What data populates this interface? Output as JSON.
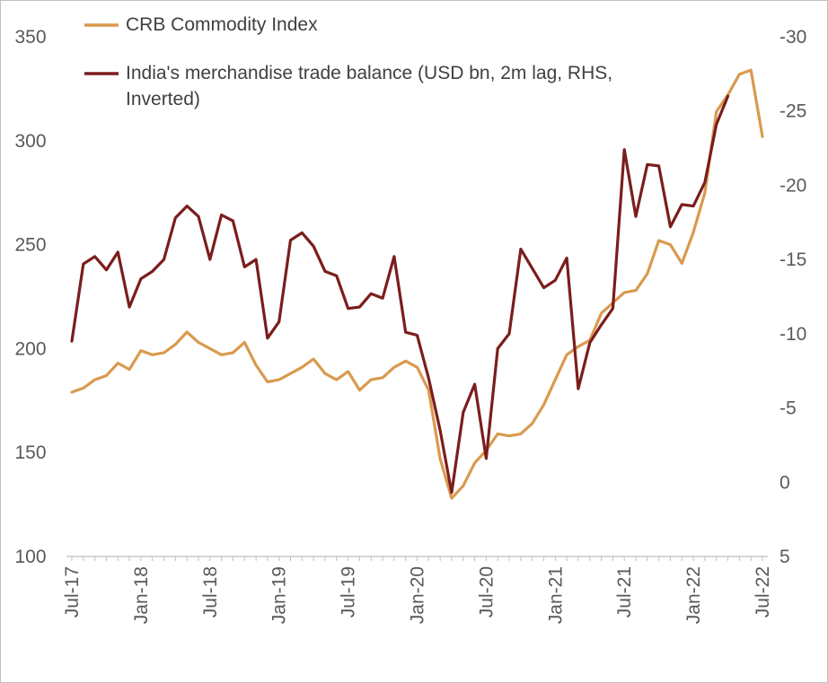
{
  "chart_data": {
    "type": "line",
    "legend_placement": "top-left",
    "grid": false,
    "x_tick_labels": [
      "Jul-17",
      "Jan-18",
      "Jul-18",
      "Jan-19",
      "Jul-19",
      "Jan-20",
      "Jul-20",
      "Jan-21",
      "Jul-21",
      "Jan-22",
      "Jul-22"
    ],
    "y_left": {
      "ylim": [
        100,
        350
      ],
      "ticks": [
        100,
        150,
        200,
        250,
        300,
        350
      ]
    },
    "y_right": {
      "ylim": [
        5,
        -30
      ],
      "inverted": true,
      "ticks": [
        5,
        0,
        -5,
        -10,
        -15,
        -20,
        -25,
        -30
      ]
    },
    "series": [
      {
        "name": "CRB Commodity Index",
        "axis": "left",
        "color": "#D99A4E",
        "x": [
          "2017-07",
          "2017-08",
          "2017-09",
          "2017-10",
          "2017-11",
          "2017-12",
          "2018-01",
          "2018-02",
          "2018-03",
          "2018-04",
          "2018-05",
          "2018-06",
          "2018-07",
          "2018-08",
          "2018-09",
          "2018-10",
          "2018-11",
          "2018-12",
          "2019-01",
          "2019-02",
          "2019-03",
          "2019-04",
          "2019-05",
          "2019-06",
          "2019-07",
          "2019-08",
          "2019-09",
          "2019-10",
          "2019-11",
          "2019-12",
          "2020-01",
          "2020-02",
          "2020-03",
          "2020-04",
          "2020-05",
          "2020-06",
          "2020-07",
          "2020-08",
          "2020-09",
          "2020-10",
          "2020-11",
          "2020-12",
          "2021-01",
          "2021-02",
          "2021-03",
          "2021-04",
          "2021-05",
          "2021-06",
          "2021-07",
          "2021-08",
          "2021-09",
          "2021-10",
          "2021-11",
          "2021-12",
          "2022-01",
          "2022-02",
          "2022-03",
          "2022-04",
          "2022-05",
          "2022-06",
          "2022-07"
        ],
        "values": [
          179,
          181,
          185,
          187,
          193,
          190,
          199,
          197,
          198,
          202,
          208,
          203,
          200,
          197,
          198,
          203,
          192,
          184,
          185,
          188,
          191,
          195,
          188,
          185,
          189,
          180,
          185,
          186,
          191,
          194,
          191,
          180,
          147,
          128,
          134,
          145,
          151,
          159,
          158,
          159,
          164,
          173,
          185,
          197,
          201,
          204,
          217,
          222,
          227,
          228,
          236,
          252,
          250,
          241,
          256,
          275,
          314,
          322,
          332,
          334,
          302
        ]
      },
      {
        "name": "India's merchandise trade balance (USD bn, 2m lag, RHS, Inverted)",
        "axis": "right",
        "color": "#7B1D1D",
        "x": [
          "2017-07",
          "2017-08",
          "2017-09",
          "2017-10",
          "2017-11",
          "2017-12",
          "2018-01",
          "2018-02",
          "2018-03",
          "2018-04",
          "2018-05",
          "2018-06",
          "2018-07",
          "2018-08",
          "2018-09",
          "2018-10",
          "2018-11",
          "2018-12",
          "2019-01",
          "2019-02",
          "2019-03",
          "2019-04",
          "2019-05",
          "2019-06",
          "2019-07",
          "2019-08",
          "2019-09",
          "2019-10",
          "2019-11",
          "2019-12",
          "2020-01",
          "2020-02",
          "2020-03",
          "2020-04",
          "2020-05",
          "2020-06",
          "2020-07",
          "2020-08",
          "2020-09",
          "2020-10",
          "2020-11",
          "2020-12",
          "2021-01",
          "2021-02",
          "2021-03",
          "2021-04",
          "2021-05",
          "2021-06",
          "2021-07",
          "2021-08",
          "2021-09",
          "2021-10",
          "2021-11",
          "2021-12",
          "2022-01",
          "2022-02",
          "2022-03",
          "2022-04",
          "2022-05"
        ],
        "values": [
          -9.5,
          -14.7,
          -15.2,
          -14.3,
          -15.5,
          -11.8,
          -13.7,
          -14.2,
          -15.0,
          -17.8,
          -18.6,
          -17.9,
          -15.0,
          -18.0,
          -17.6,
          -14.5,
          -15.0,
          -9.7,
          -10.8,
          -16.3,
          -16.8,
          -15.9,
          -14.2,
          -13.9,
          -11.7,
          -11.8,
          -12.7,
          -12.4,
          -15.2,
          -10.1,
          -9.9,
          -7.0,
          -3.5,
          0.7,
          -4.7,
          -6.6,
          -1.6,
          -9.0,
          -10.0,
          -15.7,
          -14.4,
          -13.1,
          -13.6,
          -15.1,
          -6.3,
          -9.4,
          -10.6,
          -11.7,
          -22.4,
          -17.9,
          -21.4,
          -21.3,
          -17.2,
          -18.7,
          -18.6,
          -20.2,
          -24.1,
          -26.0,
          null
        ]
      }
    ]
  }
}
